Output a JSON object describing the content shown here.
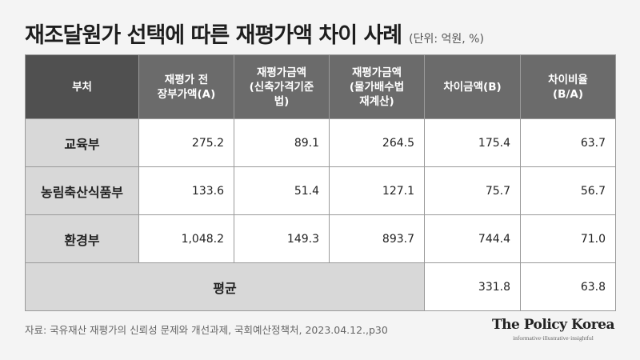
{
  "title": "재조달원가 선택에 따른 재평가액 차이 사례",
  "unit": "(단위: 억원, %)",
  "table": {
    "headers": [
      [
        "부처"
      ],
      [
        "재평가 전",
        "장부가액(A)"
      ],
      [
        "재평가금액",
        "(신축가격기준법)"
      ],
      [
        "재평가금액",
        "(물가배수법",
        "재계산)"
      ],
      [
        "차이금액(B)"
      ],
      [
        "차이비율",
        "(B/A)"
      ]
    ],
    "rows": [
      {
        "name": "교육부",
        "values": [
          "275.2",
          "89.1",
          "264.5",
          "175.4",
          "63.7"
        ]
      },
      {
        "name": "농림축산식품부",
        "values": [
          "133.6",
          "51.4",
          "127.1",
          "75.7",
          "56.7"
        ]
      },
      {
        "name": "환경부",
        "values": [
          "1,048.2",
          "149.3",
          "893.7",
          "744.4",
          "71.0"
        ]
      }
    ],
    "average": {
      "label": "평균",
      "diff": "331.8",
      "ratio": "63.8"
    }
  },
  "source": "자료: 국유재산 재평가의 신뢰성 문제와 개선과제, 국회예산정책처, 2023.04.12.,p30",
  "brand": {
    "name": "The Policy Korea",
    "tagline": "informative·illustrative·insightful"
  },
  "colors": {
    "header_dark": "#505050",
    "header": "#6b6b6b",
    "row_label_bg": "#d8d8d8",
    "background": "#f4f4f4"
  }
}
